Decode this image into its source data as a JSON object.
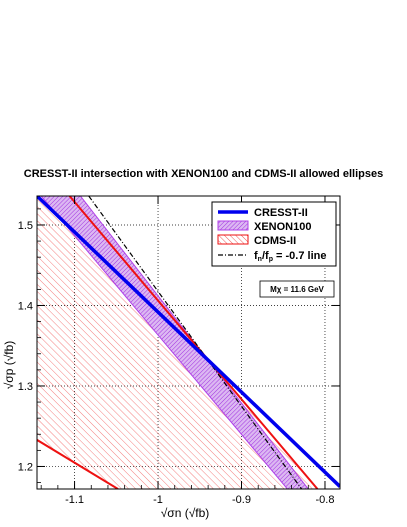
{
  "chart_data": {
    "type": "line",
    "title": "CRESST-II intersection with XENON100 and CDMS-II allowed ellipses",
    "xlabel": "√σn (√fb)",
    "ylabel": "√σp (√fb)",
    "xlim": [
      -1.145,
      -0.782
    ],
    "ylim": [
      1.172,
      1.536
    ],
    "xticks": [
      -1.1,
      -1.0,
      -0.9,
      -0.8
    ],
    "xtick_labels": [
      "-1.1",
      "-1",
      "-0.9",
      "-0.8"
    ],
    "yticks": [
      1.2,
      1.3,
      1.4,
      1.5
    ],
    "ytick_labels": [
      "1.2",
      "1.3",
      "1.4",
      "1.5"
    ],
    "grid": true,
    "legend_position": "top-right",
    "annotation": "Mχ = 11.6 GeV",
    "series": [
      {
        "name": "CRESST-II",
        "style": "thick solid line",
        "color": "#0000ee",
        "x": [
          -1.145,
          -0.782
        ],
        "y": [
          1.536,
          1.175
        ]
      },
      {
        "name": "XENON100",
        "style": "hatched band",
        "color": "#bb22ee",
        "x_upper": [
          -1.093,
          -0.82
        ],
        "y_upper": [
          1.536,
          1.172
        ],
        "x_lower": [
          -1.14,
          -0.845
        ],
        "y_lower": [
          1.536,
          1.172
        ]
      },
      {
        "name": "CDMS-II",
        "style": "hatched band",
        "color": "#ee1111",
        "x_upper": [
          -1.106,
          -0.809
        ],
        "y_upper": [
          1.536,
          1.172
        ],
        "x_lower": [
          -1.145,
          -1.048
        ],
        "y_lower": [
          1.233,
          1.172
        ]
      },
      {
        "name": "fn/fp = -0.7 line",
        "style": "dash-dot line",
        "color": "#000000",
        "x": [
          -1.083,
          -0.828
        ],
        "y": [
          1.536,
          1.172
        ]
      }
    ],
    "legend_labels": [
      "CRESST-II",
      "XENON100",
      "CDMS-II",
      "f",
      "n",
      "/f",
      "p",
      " = -0.7 line"
    ]
  }
}
